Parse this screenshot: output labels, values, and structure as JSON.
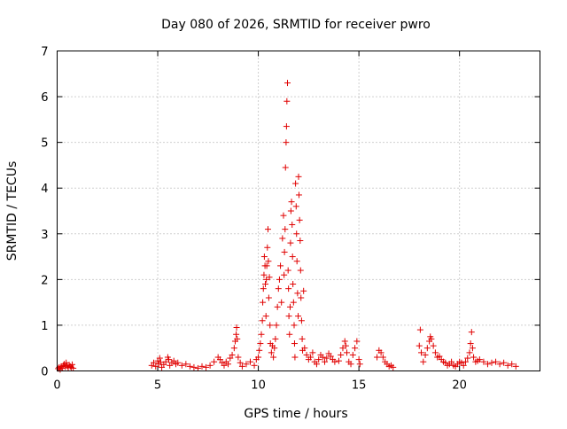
{
  "chart_data": {
    "type": "scatter",
    "title": "Day 080 of 2026, SRMTID for receiver pwro",
    "xlabel": "GPS time / hours",
    "ylabel": "SRMTID / TECUs",
    "xlim": [
      0,
      24
    ],
    "ylim": [
      0,
      7
    ],
    "xticks": [
      0,
      5,
      10,
      15,
      20
    ],
    "yticks": [
      0,
      1,
      2,
      3,
      4,
      5,
      6,
      7
    ],
    "grid": true,
    "marker": "+",
    "series_color": "#e00000",
    "series": [
      {
        "name": "SRMTID",
        "points": [
          [
            0.05,
            0.05
          ],
          [
            0.1,
            0.08
          ],
          [
            0.15,
            0.03
          ],
          [
            0.2,
            0.1
          ],
          [
            0.25,
            0.06
          ],
          [
            0.3,
            0.12
          ],
          [
            0.35,
            0.15
          ],
          [
            0.4,
            0.09
          ],
          [
            0.45,
            0.18
          ],
          [
            0.5,
            0.11
          ],
          [
            0.55,
            0.07
          ],
          [
            0.6,
            0.13
          ],
          [
            0.65,
            0.1
          ],
          [
            0.7,
            0.08
          ],
          [
            0.75,
            0.14
          ],
          [
            0.8,
            0.06
          ],
          [
            4.7,
            0.12
          ],
          [
            4.8,
            0.18
          ],
          [
            4.9,
            0.1
          ],
          [
            5.0,
            0.22
          ],
          [
            5.05,
            0.15
          ],
          [
            5.1,
            0.28
          ],
          [
            5.15,
            0.19
          ],
          [
            5.2,
            0.08
          ],
          [
            5.3,
            0.14
          ],
          [
            5.4,
            0.2
          ],
          [
            5.5,
            0.3
          ],
          [
            5.55,
            0.25
          ],
          [
            5.6,
            0.12
          ],
          [
            5.7,
            0.18
          ],
          [
            5.8,
            0.22
          ],
          [
            5.9,
            0.15
          ],
          [
            6.0,
            0.18
          ],
          [
            6.2,
            0.12
          ],
          [
            6.4,
            0.15
          ],
          [
            6.6,
            0.1
          ],
          [
            6.8,
            0.08
          ],
          [
            7.0,
            0.06
          ],
          [
            7.2,
            0.1
          ],
          [
            7.4,
            0.08
          ],
          [
            7.6,
            0.12
          ],
          [
            7.8,
            0.2
          ],
          [
            8.0,
            0.3
          ],
          [
            8.1,
            0.25
          ],
          [
            8.2,
            0.18
          ],
          [
            8.3,
            0.12
          ],
          [
            8.4,
            0.2
          ],
          [
            8.5,
            0.15
          ],
          [
            8.6,
            0.28
          ],
          [
            8.7,
            0.35
          ],
          [
            8.8,
            0.5
          ],
          [
            8.85,
            0.65
          ],
          [
            8.9,
            0.8
          ],
          [
            8.92,
            0.95
          ],
          [
            8.95,
            0.7
          ],
          [
            9.0,
            0.3
          ],
          [
            9.1,
            0.18
          ],
          [
            9.2,
            0.1
          ],
          [
            9.4,
            0.15
          ],
          [
            9.6,
            0.2
          ],
          [
            9.8,
            0.12
          ],
          [
            9.9,
            0.25
          ],
          [
            10.0,
            0.3
          ],
          [
            10.05,
            0.45
          ],
          [
            10.1,
            0.6
          ],
          [
            10.15,
            0.8
          ],
          [
            10.2,
            1.1
          ],
          [
            10.22,
            1.5
          ],
          [
            10.25,
            1.8
          ],
          [
            10.28,
            2.1
          ],
          [
            10.3,
            2.5
          ],
          [
            10.33,
            2.3
          ],
          [
            10.35,
            1.9
          ],
          [
            10.38,
            1.2
          ],
          [
            10.4,
            2.0
          ],
          [
            10.42,
            2.3
          ],
          [
            10.45,
            2.7
          ],
          [
            10.48,
            3.1
          ],
          [
            10.5,
            2.4
          ],
          [
            10.52,
            1.6
          ],
          [
            10.55,
            2.05
          ],
          [
            10.58,
            1.0
          ],
          [
            10.6,
            0.6
          ],
          [
            10.65,
            0.4
          ],
          [
            10.7,
            0.55
          ],
          [
            10.75,
            0.3
          ],
          [
            10.8,
            0.5
          ],
          [
            10.85,
            0.7
          ],
          [
            10.9,
            1.0
          ],
          [
            10.95,
            1.4
          ],
          [
            11.0,
            1.8
          ],
          [
            11.05,
            2.0
          ],
          [
            11.1,
            2.3
          ],
          [
            11.15,
            1.5
          ],
          [
            11.2,
            2.9
          ],
          [
            11.25,
            3.4
          ],
          [
            11.28,
            2.1
          ],
          [
            11.3,
            2.6
          ],
          [
            11.33,
            3.1
          ],
          [
            11.35,
            4.45
          ],
          [
            11.38,
            5.0
          ],
          [
            11.4,
            5.35
          ],
          [
            11.42,
            5.9
          ],
          [
            11.45,
            6.3
          ],
          [
            11.48,
            2.2
          ],
          [
            11.5,
            1.8
          ],
          [
            11.52,
            1.2
          ],
          [
            11.55,
            0.8
          ],
          [
            11.58,
            1.4
          ],
          [
            11.6,
            2.8
          ],
          [
            11.62,
            3.5
          ],
          [
            11.65,
            3.7
          ],
          [
            11.68,
            3.2
          ],
          [
            11.7,
            2.5
          ],
          [
            11.72,
            1.9
          ],
          [
            11.75,
            1.5
          ],
          [
            11.78,
            1.0
          ],
          [
            11.8,
            0.6
          ],
          [
            11.82,
            0.3
          ],
          [
            11.85,
            4.1
          ],
          [
            11.88,
            3.6
          ],
          [
            11.9,
            3.0
          ],
          [
            11.92,
            2.4
          ],
          [
            11.95,
            1.7
          ],
          [
            11.98,
            1.2
          ],
          [
            12.0,
            4.25
          ],
          [
            12.02,
            3.85
          ],
          [
            12.05,
            3.3
          ],
          [
            12.08,
            2.85
          ],
          [
            12.1,
            2.2
          ],
          [
            12.12,
            1.6
          ],
          [
            12.15,
            1.1
          ],
          [
            12.18,
            0.7
          ],
          [
            12.2,
            0.45
          ],
          [
            12.25,
            1.75
          ],
          [
            12.3,
            0.5
          ],
          [
            12.4,
            0.35
          ],
          [
            12.5,
            0.25
          ],
          [
            12.6,
            0.3
          ],
          [
            12.7,
            0.4
          ],
          [
            12.8,
            0.2
          ],
          [
            12.9,
            0.15
          ],
          [
            13.0,
            0.25
          ],
          [
            13.1,
            0.35
          ],
          [
            13.2,
            0.3
          ],
          [
            13.3,
            0.2
          ],
          [
            13.4,
            0.28
          ],
          [
            13.5,
            0.38
          ],
          [
            13.6,
            0.32
          ],
          [
            13.7,
            0.25
          ],
          [
            13.8,
            0.2
          ],
          [
            14.0,
            0.22
          ],
          [
            14.1,
            0.35
          ],
          [
            14.2,
            0.5
          ],
          [
            14.3,
            0.65
          ],
          [
            14.35,
            0.55
          ],
          [
            14.4,
            0.4
          ],
          [
            14.5,
            0.2
          ],
          [
            14.6,
            0.15
          ],
          [
            14.7,
            0.35
          ],
          [
            14.8,
            0.5
          ],
          [
            14.9,
            0.65
          ],
          [
            15.0,
            0.25
          ],
          [
            15.05,
            0.15
          ],
          [
            15.9,
            0.3
          ],
          [
            16.0,
            0.45
          ],
          [
            16.1,
            0.4
          ],
          [
            16.2,
            0.3
          ],
          [
            16.3,
            0.2
          ],
          [
            16.4,
            0.15
          ],
          [
            16.5,
            0.1
          ],
          [
            16.6,
            0.12
          ],
          [
            16.7,
            0.08
          ],
          [
            18.0,
            0.55
          ],
          [
            18.05,
            0.9
          ],
          [
            18.1,
            0.4
          ],
          [
            18.2,
            0.2
          ],
          [
            18.3,
            0.35
          ],
          [
            18.4,
            0.5
          ],
          [
            18.5,
            0.65
          ],
          [
            18.55,
            0.75
          ],
          [
            18.6,
            0.7
          ],
          [
            18.7,
            0.55
          ],
          [
            18.8,
            0.4
          ],
          [
            18.9,
            0.3
          ],
          [
            19.0,
            0.32
          ],
          [
            19.1,
            0.25
          ],
          [
            19.2,
            0.2
          ],
          [
            19.3,
            0.18
          ],
          [
            19.4,
            0.12
          ],
          [
            19.5,
            0.15
          ],
          [
            19.6,
            0.2
          ],
          [
            19.7,
            0.12
          ],
          [
            19.8,
            0.1
          ],
          [
            19.9,
            0.15
          ],
          [
            20.0,
            0.2
          ],
          [
            20.1,
            0.18
          ],
          [
            20.2,
            0.12
          ],
          [
            20.3,
            0.2
          ],
          [
            20.4,
            0.28
          ],
          [
            20.5,
            0.4
          ],
          [
            20.55,
            0.6
          ],
          [
            20.6,
            0.85
          ],
          [
            20.65,
            0.5
          ],
          [
            20.7,
            0.3
          ],
          [
            20.8,
            0.2
          ],
          [
            20.9,
            0.22
          ],
          [
            21.0,
            0.25
          ],
          [
            21.2,
            0.2
          ],
          [
            21.4,
            0.15
          ],
          [
            21.6,
            0.18
          ],
          [
            21.8,
            0.2
          ],
          [
            22.0,
            0.15
          ],
          [
            22.2,
            0.18
          ],
          [
            22.4,
            0.12
          ],
          [
            22.6,
            0.15
          ],
          [
            22.8,
            0.1
          ]
        ]
      }
    ]
  }
}
